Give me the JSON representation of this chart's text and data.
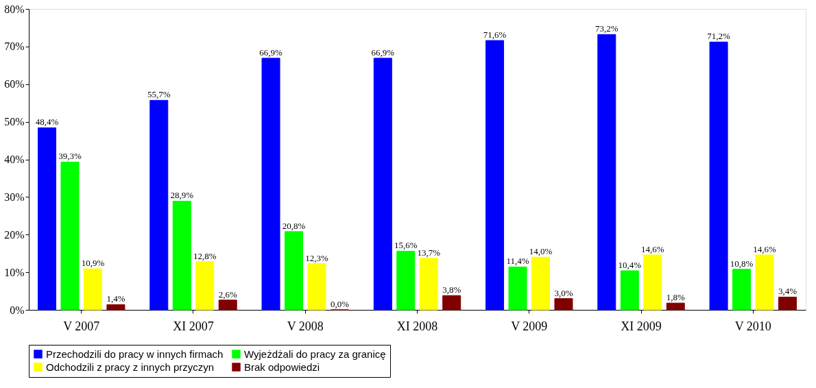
{
  "chart_data": {
    "type": "bar",
    "categories": [
      "V 2007",
      "XI 2007",
      "V 2008",
      "XI 2008",
      "V 2009",
      "XI 2009",
      "V 2010"
    ],
    "series": [
      {
        "name": "Przechodzili do pracy w innych firmach",
        "color": "#0000ff",
        "values": [
          48.4,
          55.7,
          66.9,
          66.9,
          71.6,
          73.2,
          71.2
        ],
        "value_labels": [
          "48,4%",
          "55,7%",
          "66,9%",
          "66,9%",
          "71,6%",
          "73,2%",
          "71,2%"
        ]
      },
      {
        "name": "Wyjeżdżali do pracy za granicę",
        "color": "#00ff00",
        "values": [
          39.3,
          28.9,
          20.8,
          15.6,
          11.4,
          10.4,
          10.8
        ],
        "value_labels": [
          "39,3%",
          "28,9%",
          "20,8%",
          "15,6%",
          "11,4%",
          "10,4%",
          "10,8%"
        ]
      },
      {
        "name": "Odchodzili z pracy z innych przyczyn",
        "color": "#ffff00",
        "values": [
          10.9,
          12.8,
          12.3,
          13.7,
          14.0,
          14.6,
          14.6
        ],
        "value_labels": [
          "10,9%",
          "12,8%",
          "12,3%",
          "13,7%",
          "14,0%",
          "14,6%",
          "14,6%"
        ]
      },
      {
        "name": "Brak odpowiedzi",
        "color": "#800000",
        "values": [
          1.4,
          2.6,
          0.0,
          3.8,
          3.0,
          1.8,
          3.4
        ],
        "value_labels": [
          "1,4%",
          "2,6%",
          "0,0%",
          "3,8%",
          "3,0%",
          "1,8%",
          "3,4%"
        ]
      }
    ],
    "ylim": [
      0,
      80
    ],
    "yticks": [
      {
        "value": 0,
        "label": "0%"
      },
      {
        "value": 10,
        "label": "10%"
      },
      {
        "value": 20,
        "label": "20%"
      },
      {
        "value": 30,
        "label": "30%"
      },
      {
        "value": 40,
        "label": "40%"
      },
      {
        "value": 50,
        "label": "50%"
      },
      {
        "value": 60,
        "label": "60%"
      },
      {
        "value": 70,
        "label": "70%"
      },
      {
        "value": 80,
        "label": "80%"
      }
    ],
    "grid": false,
    "legend": "bottom"
  }
}
